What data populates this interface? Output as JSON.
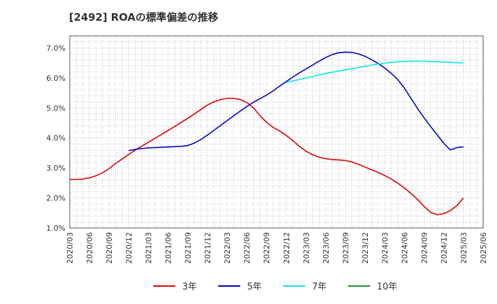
{
  "chart_data": {
    "type": "line",
    "title": "[2492]  ROAの標準偏差の推移",
    "x_tick_labels": [
      "2020/03",
      "2020/06",
      "2020/09",
      "2020/12",
      "2021/03",
      "2021/06",
      "2021/09",
      "2021/12",
      "2022/03",
      "2022/06",
      "2022/09",
      "2022/12",
      "2023/03",
      "2023/06",
      "2023/09",
      "2023/12",
      "2024/03",
      "2024/06",
      "2024/09",
      "2024/12",
      "2025/03",
      "2025/06"
    ],
    "y_tick_labels": [
      "1.0%",
      "2.0%",
      "3.0%",
      "4.0%",
      "5.0%",
      "6.0%",
      "7.0%"
    ],
    "ylim": [
      1.0,
      7.4
    ],
    "grid": true,
    "legend_position": "bottom",
    "series": [
      {
        "name": "3年",
        "color": "#dd0000",
        "points": [
          {
            "x": "2020/03",
            "y": 2.62
          },
          {
            "x": "2020/04",
            "y": 2.62
          },
          {
            "x": "2020/05",
            "y": 2.63
          },
          {
            "x": "2020/06",
            "y": 2.67
          },
          {
            "x": "2020/07",
            "y": 2.74
          },
          {
            "x": "2020/08",
            "y": 2.84
          },
          {
            "x": "2020/09",
            "y": 2.98
          },
          {
            "x": "2020/10",
            "y": 3.15
          },
          {
            "x": "2020/11",
            "y": 3.3
          },
          {
            "x": "2020/12",
            "y": 3.45
          },
          {
            "x": "2021/01",
            "y": 3.6
          },
          {
            "x": "2021/02",
            "y": 3.73
          },
          {
            "x": "2021/03",
            "y": 3.86
          },
          {
            "x": "2021/04",
            "y": 3.99
          },
          {
            "x": "2021/05",
            "y": 4.12
          },
          {
            "x": "2021/06",
            "y": 4.25
          },
          {
            "x": "2021/07",
            "y": 4.38
          },
          {
            "x": "2021/08",
            "y": 4.52
          },
          {
            "x": "2021/09",
            "y": 4.66
          },
          {
            "x": "2021/10",
            "y": 4.8
          },
          {
            "x": "2021/11",
            "y": 4.95
          },
          {
            "x": "2021/12",
            "y": 5.1
          },
          {
            "x": "2022/01",
            "y": 5.21
          },
          {
            "x": "2022/02",
            "y": 5.28
          },
          {
            "x": "2022/03",
            "y": 5.32
          },
          {
            "x": "2022/04",
            "y": 5.32
          },
          {
            "x": "2022/05",
            "y": 5.28
          },
          {
            "x": "2022/06",
            "y": 5.18
          },
          {
            "x": "2022/07",
            "y": 5.0
          },
          {
            "x": "2022/08",
            "y": 4.74
          },
          {
            "x": "2022/09",
            "y": 4.52
          },
          {
            "x": "2022/10",
            "y": 4.35
          },
          {
            "x": "2022/11",
            "y": 4.23
          },
          {
            "x": "2022/12",
            "y": 4.08
          },
          {
            "x": "2023/01",
            "y": 3.91
          },
          {
            "x": "2023/02",
            "y": 3.72
          },
          {
            "x": "2023/03",
            "y": 3.56
          },
          {
            "x": "2023/04",
            "y": 3.44
          },
          {
            "x": "2023/05",
            "y": 3.36
          },
          {
            "x": "2023/06",
            "y": 3.31
          },
          {
            "x": "2023/07",
            "y": 3.28
          },
          {
            "x": "2023/08",
            "y": 3.27
          },
          {
            "x": "2023/09",
            "y": 3.25
          },
          {
            "x": "2023/10",
            "y": 3.2
          },
          {
            "x": "2023/11",
            "y": 3.12
          },
          {
            "x": "2023/12",
            "y": 3.03
          },
          {
            "x": "2024/01",
            "y": 2.94
          },
          {
            "x": "2024/02",
            "y": 2.85
          },
          {
            "x": "2024/03",
            "y": 2.75
          },
          {
            "x": "2024/04",
            "y": 2.63
          },
          {
            "x": "2024/05",
            "y": 2.49
          },
          {
            "x": "2024/06",
            "y": 2.33
          },
          {
            "x": "2024/07",
            "y": 2.15
          },
          {
            "x": "2024/08",
            "y": 1.95
          },
          {
            "x": "2024/09",
            "y": 1.72
          },
          {
            "x": "2024/10",
            "y": 1.52
          },
          {
            "x": "2024/11",
            "y": 1.44
          },
          {
            "x": "2024/12",
            "y": 1.48
          },
          {
            "x": "2025/01",
            "y": 1.58
          },
          {
            "x": "2025/02",
            "y": 1.75
          },
          {
            "x": "2025/03",
            "y": 2.0
          }
        ]
      },
      {
        "name": "5年",
        "color": "#0000cc",
        "points": [
          {
            "x": "2020/12",
            "y": 3.58
          },
          {
            "x": "2021/01",
            "y": 3.62
          },
          {
            "x": "2021/02",
            "y": 3.65
          },
          {
            "x": "2021/03",
            "y": 3.67
          },
          {
            "x": "2021/04",
            "y": 3.68
          },
          {
            "x": "2021/05",
            "y": 3.69
          },
          {
            "x": "2021/06",
            "y": 3.7
          },
          {
            "x": "2021/07",
            "y": 3.71
          },
          {
            "x": "2021/08",
            "y": 3.72
          },
          {
            "x": "2021/09",
            "y": 3.75
          },
          {
            "x": "2021/10",
            "y": 3.83
          },
          {
            "x": "2021/11",
            "y": 3.95
          },
          {
            "x": "2021/12",
            "y": 4.1
          },
          {
            "x": "2022/01",
            "y": 4.26
          },
          {
            "x": "2022/02",
            "y": 4.42
          },
          {
            "x": "2022/03",
            "y": 4.58
          },
          {
            "x": "2022/04",
            "y": 4.74
          },
          {
            "x": "2022/05",
            "y": 4.9
          },
          {
            "x": "2022/06",
            "y": 5.05
          },
          {
            "x": "2022/07",
            "y": 5.19
          },
          {
            "x": "2022/08",
            "y": 5.31
          },
          {
            "x": "2022/09",
            "y": 5.43
          },
          {
            "x": "2022/10",
            "y": 5.57
          },
          {
            "x": "2022/11",
            "y": 5.73
          },
          {
            "x": "2022/12",
            "y": 5.88
          },
          {
            "x": "2023/01",
            "y": 6.03
          },
          {
            "x": "2023/02",
            "y": 6.17
          },
          {
            "x": "2023/03",
            "y": 6.3
          },
          {
            "x": "2023/04",
            "y": 6.43
          },
          {
            "x": "2023/05",
            "y": 6.56
          },
          {
            "x": "2023/06",
            "y": 6.68
          },
          {
            "x": "2023/07",
            "y": 6.78
          },
          {
            "x": "2023/08",
            "y": 6.84
          },
          {
            "x": "2023/09",
            "y": 6.86
          },
          {
            "x": "2023/10",
            "y": 6.85
          },
          {
            "x": "2023/11",
            "y": 6.8
          },
          {
            "x": "2023/12",
            "y": 6.72
          },
          {
            "x": "2024/01",
            "y": 6.61
          },
          {
            "x": "2024/02",
            "y": 6.48
          },
          {
            "x": "2024/03",
            "y": 6.33
          },
          {
            "x": "2024/04",
            "y": 6.15
          },
          {
            "x": "2024/05",
            "y": 5.94
          },
          {
            "x": "2024/06",
            "y": 5.66
          },
          {
            "x": "2024/07",
            "y": 5.32
          },
          {
            "x": "2024/08",
            "y": 4.98
          },
          {
            "x": "2024/09",
            "y": 4.67
          },
          {
            "x": "2024/10",
            "y": 4.38
          },
          {
            "x": "2024/11",
            "y": 4.1
          },
          {
            "x": "2024/12",
            "y": 3.82
          },
          {
            "x": "2025/01",
            "y": 3.6
          },
          {
            "x": "2025/02",
            "y": 3.68
          },
          {
            "x": "2025/03",
            "y": 3.7
          }
        ]
      },
      {
        "name": "7年",
        "color": "#00e5ee",
        "points": [
          {
            "x": "2022/12",
            "y": 5.85
          },
          {
            "x": "2023/01",
            "y": 5.9
          },
          {
            "x": "2023/02",
            "y": 5.95
          },
          {
            "x": "2023/03",
            "y": 6.0
          },
          {
            "x": "2023/04",
            "y": 6.05
          },
          {
            "x": "2023/05",
            "y": 6.1
          },
          {
            "x": "2023/06",
            "y": 6.15
          },
          {
            "x": "2023/07",
            "y": 6.19
          },
          {
            "x": "2023/08",
            "y": 6.23
          },
          {
            "x": "2023/09",
            "y": 6.27
          },
          {
            "x": "2023/10",
            "y": 6.31
          },
          {
            "x": "2023/11",
            "y": 6.35
          },
          {
            "x": "2023/12",
            "y": 6.39
          },
          {
            "x": "2024/01",
            "y": 6.43
          },
          {
            "x": "2024/02",
            "y": 6.46
          },
          {
            "x": "2024/03",
            "y": 6.49
          },
          {
            "x": "2024/04",
            "y": 6.52
          },
          {
            "x": "2024/05",
            "y": 6.54
          },
          {
            "x": "2024/06",
            "y": 6.55
          },
          {
            "x": "2024/07",
            "y": 6.56
          },
          {
            "x": "2024/08",
            "y": 6.56
          },
          {
            "x": "2024/09",
            "y": 6.56
          },
          {
            "x": "2024/10",
            "y": 6.55
          },
          {
            "x": "2024/11",
            "y": 6.54
          },
          {
            "x": "2024/12",
            "y": 6.53
          },
          {
            "x": "2025/01",
            "y": 6.52
          },
          {
            "x": "2025/02",
            "y": 6.51
          },
          {
            "x": "2025/03",
            "y": 6.5
          }
        ]
      },
      {
        "name": "10年",
        "color": "#228b22",
        "points": []
      }
    ]
  }
}
